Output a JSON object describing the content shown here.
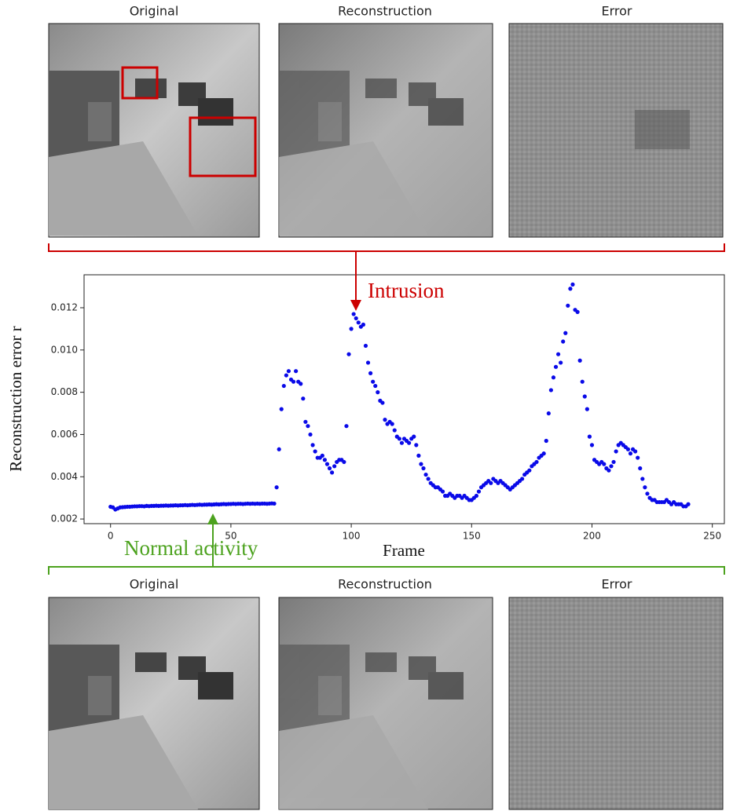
{
  "top_row": {
    "titles": [
      "Original",
      "Reconstruction",
      "Error"
    ]
  },
  "bottom_row": {
    "titles": [
      "Original",
      "Reconstruction",
      "Error"
    ]
  },
  "chart_data": {
    "type": "scatter",
    "xlabel": "Frame",
    "ylabel": "Reconstruction error r",
    "annotations": [
      {
        "text": "Intrusion",
        "color": "#cc0000"
      },
      {
        "text": "Normal activity",
        "color": "#4ca21e"
      }
    ],
    "xlim": [
      -11,
      255
    ],
    "xticks": [
      0,
      50,
      100,
      150,
      200,
      250
    ],
    "ylim": [
      0.00178,
      0.01356
    ],
    "yticks": [
      0.002,
      0.004,
      0.006,
      0.008,
      {
        "value": 0.01,
        "label": "0.010"
      },
      0.012
    ],
    "grid": false,
    "series": [
      {
        "name": "Reconstruction error",
        "color": "#0a0ae8",
        "x": [
          0,
          1,
          2,
          3,
          4,
          5,
          6,
          7,
          8,
          9,
          10,
          11,
          12,
          13,
          14,
          15,
          16,
          17,
          18,
          19,
          20,
          21,
          22,
          23,
          24,
          25,
          26,
          27,
          28,
          29,
          30,
          31,
          32,
          33,
          34,
          35,
          36,
          37,
          38,
          39,
          40,
          41,
          42,
          43,
          44,
          45,
          46,
          47,
          48,
          49,
          50,
          51,
          52,
          53,
          54,
          55,
          56,
          57,
          58,
          59,
          60,
          61,
          62,
          63,
          64,
          65,
          66,
          67,
          68,
          69,
          70,
          71,
          72,
          73,
          74,
          75,
          76,
          77,
          78,
          79,
          80,
          81,
          82,
          83,
          84,
          85,
          86,
          87,
          88,
          89,
          90,
          91,
          92,
          93,
          94,
          95,
          96,
          97,
          98,
          99,
          100,
          101,
          102,
          103,
          104,
          105,
          106,
          107,
          108,
          109,
          110,
          111,
          112,
          113,
          114,
          115,
          116,
          117,
          118,
          119,
          120,
          121,
          122,
          123,
          124,
          125,
          126,
          127,
          128,
          129,
          130,
          131,
          132,
          133,
          134,
          135,
          136,
          137,
          138,
          139,
          140,
          141,
          142,
          143,
          144,
          145,
          146,
          147,
          148,
          149,
          150,
          151,
          152,
          153,
          154,
          155,
          156,
          157,
          158,
          159,
          160,
          161,
          162,
          163,
          164,
          165,
          166,
          167,
          168,
          169,
          170,
          171,
          172,
          173,
          174,
          175,
          176,
          177,
          178,
          179,
          180,
          181,
          182,
          183,
          184,
          185,
          186,
          187,
          188,
          189,
          190,
          191,
          192,
          193,
          194,
          195,
          196,
          197,
          198,
          199,
          200,
          201,
          202,
          203,
          204,
          205,
          206,
          207,
          208,
          209,
          210,
          211,
          212,
          213,
          214,
          215,
          216,
          217,
          218,
          219,
          220,
          221,
          222,
          223,
          224,
          225,
          226,
          227,
          228,
          229,
          230,
          231,
          232,
          233,
          234,
          235,
          236,
          237,
          238,
          239,
          240
        ],
        "values": [
          0.00258,
          0.00255,
          0.00245,
          0.0025,
          0.00255,
          0.00256,
          0.00257,
          0.00258,
          0.00258,
          0.00259,
          0.0026,
          0.0026,
          0.00261,
          0.00261,
          0.0026,
          0.00262,
          0.00261,
          0.00262,
          0.00262,
          0.00263,
          0.00262,
          0.00263,
          0.00263,
          0.00264,
          0.00263,
          0.00264,
          0.00264,
          0.00265,
          0.00264,
          0.00265,
          0.00265,
          0.00266,
          0.00265,
          0.00266,
          0.00267,
          0.00266,
          0.00267,
          0.00268,
          0.00267,
          0.00268,
          0.00268,
          0.00269,
          0.00268,
          0.00269,
          0.0027,
          0.00269,
          0.0027,
          0.00271,
          0.0027,
          0.00271,
          0.00271,
          0.00272,
          0.00271,
          0.00272,
          0.00272,
          0.00271,
          0.00272,
          0.00273,
          0.00272,
          0.00273,
          0.00272,
          0.00273,
          0.00272,
          0.00273,
          0.00273,
          0.00272,
          0.00273,
          0.00274,
          0.00273,
          0.0035,
          0.0053,
          0.0072,
          0.0083,
          0.0088,
          0.009,
          0.0086,
          0.0085,
          0.009,
          0.0085,
          0.0084,
          0.0077,
          0.0066,
          0.0064,
          0.006,
          0.0055,
          0.0052,
          0.0049,
          0.0049,
          0.005,
          0.0048,
          0.0046,
          0.0044,
          0.0042,
          0.0045,
          0.0047,
          0.0048,
          0.0048,
          0.0047,
          0.0064,
          0.0098,
          0.011,
          0.0117,
          0.0115,
          0.0113,
          0.0111,
          0.0112,
          0.0102,
          0.0094,
          0.0089,
          0.0085,
          0.0083,
          0.008,
          0.0076,
          0.0075,
          0.0067,
          0.0065,
          0.0066,
          0.0065,
          0.0062,
          0.0059,
          0.0058,
          0.0056,
          0.0058,
          0.0057,
          0.0056,
          0.0058,
          0.0059,
          0.0055,
          0.005,
          0.0046,
          0.0044,
          0.0041,
          0.0039,
          0.0037,
          0.0036,
          0.0035,
          0.0035,
          0.0034,
          0.0033,
          0.0031,
          0.0031,
          0.0032,
          0.0031,
          0.003,
          0.0031,
          0.0031,
          0.003,
          0.0031,
          0.003,
          0.0029,
          0.0029,
          0.003,
          0.0031,
          0.0033,
          0.0035,
          0.0036,
          0.0037,
          0.0038,
          0.0037,
          0.0039,
          0.0038,
          0.0037,
          0.0038,
          0.0037,
          0.0036,
          0.0035,
          0.0034,
          0.0035,
          0.0036,
          0.0037,
          0.0038,
          0.0039,
          0.0041,
          0.0042,
          0.0043,
          0.0045,
          0.0046,
          0.0047,
          0.0049,
          0.005,
          0.0051,
          0.0057,
          0.007,
          0.0081,
          0.0087,
          0.0092,
          0.0098,
          0.0094,
          0.0104,
          0.0108,
          0.0121,
          0.0129,
          0.0131,
          0.0119,
          0.0118,
          0.0095,
          0.0085,
          0.0078,
          0.0072,
          0.0059,
          0.0055,
          0.0048,
          0.0047,
          0.0046,
          0.0047,
          0.0046,
          0.0044,
          0.0043,
          0.0045,
          0.0047,
          0.0052,
          0.0055,
          0.0056,
          0.0055,
          0.0054,
          0.0053,
          0.0051,
          0.0053,
          0.0052,
          0.0049,
          0.0044,
          0.0039,
          0.0035,
          0.0032,
          0.003,
          0.0029,
          0.0029,
          0.0028,
          0.0028,
          0.0028,
          0.0028,
          0.0029,
          0.0028,
          0.0027,
          0.0028,
          0.0027,
          0.0027,
          0.0027,
          0.0026,
          0.0026,
          0.0027
        ]
      }
    ]
  }
}
